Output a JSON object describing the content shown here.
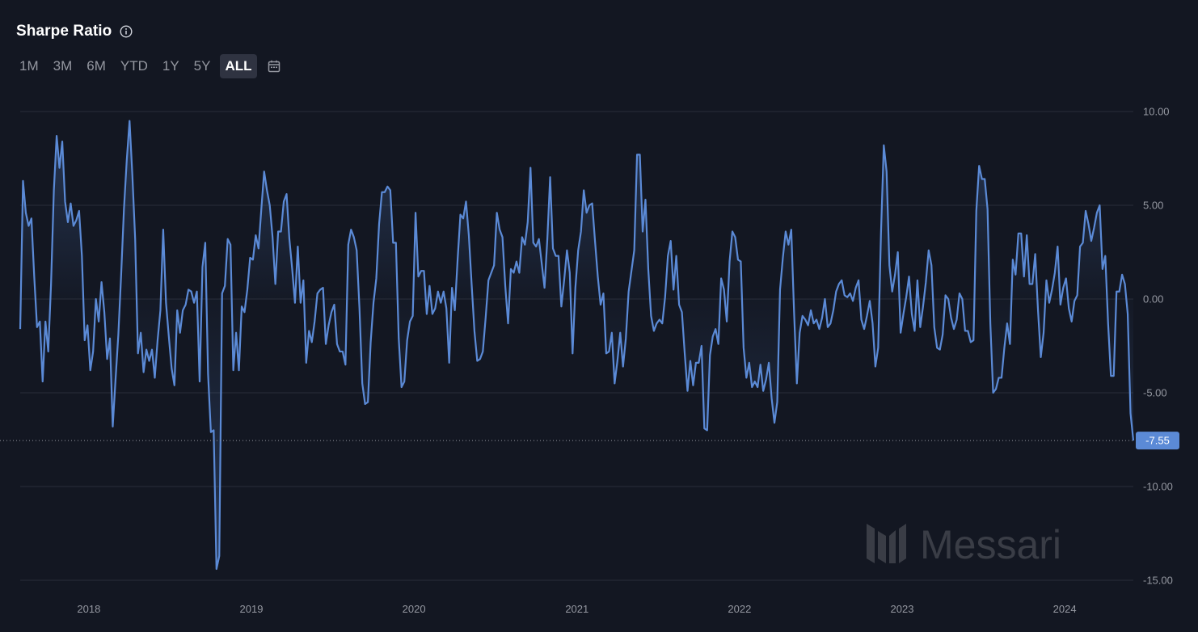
{
  "header": {
    "title": "Sharpe Ratio",
    "info_icon": "info-circle-icon",
    "ranges": [
      "1M",
      "3M",
      "6M",
      "YTD",
      "1Y",
      "5Y",
      "ALL"
    ],
    "active_range": "ALL",
    "calendar_icon": "calendar-icon"
  },
  "watermark": "Messari",
  "colors": {
    "background": "#131722",
    "line": "#5b8ad6",
    "grid": "#2a2e39",
    "badge": "#5b8ad6",
    "text": "#9598a1"
  },
  "chart_data": {
    "type": "area",
    "title": "Sharpe Ratio",
    "xlabel": "",
    "ylabel": "",
    "ylim": [
      -15,
      10
    ],
    "y_ticks": [
      10,
      5,
      0,
      -5,
      -10,
      -15
    ],
    "y_tick_labels": [
      "10.00",
      "5.00",
      "0.00",
      "-5.00",
      "-10.00",
      "-15.00"
    ],
    "x_ticks": [
      "2018",
      "2019",
      "2020",
      "2021",
      "2022",
      "2023",
      "2024"
    ],
    "grid": true,
    "last_value": -7.55,
    "last_value_label": "-7.55",
    "series": [
      {
        "x_start": "2017-07-31",
        "x_end": "2024-06-03",
        "frequency": "weekly",
        "values": [
          -1.6,
          6.3,
          4.6,
          3.9,
          4.3,
          1.2,
          -1.5,
          -1.2,
          -4.4,
          -1.2,
          -2.8,
          0.8,
          5.8,
          8.7,
          7.0,
          8.4,
          5.2,
          4.1,
          5.1,
          3.9,
          4.2,
          4.7,
          2.3,
          -2.2,
          -1.4,
          -3.8,
          -2.8,
          0.0,
          -1.2,
          0.9,
          -0.7,
          -3.2,
          -2.1,
          -6.8,
          -4.3,
          -1.9,
          1.3,
          4.8,
          7.4,
          9.5,
          6.6,
          3.2,
          -2.9,
          -1.8,
          -3.9,
          -2.7,
          -3.3,
          -2.7,
          -4.2,
          -2.2,
          -0.6,
          3.7,
          -0.2,
          -2.0,
          -3.7,
          -4.6,
          -0.6,
          -1.8,
          -0.6,
          -0.3,
          0.5,
          0.4,
          -0.2,
          0.4,
          -4.4,
          1.7,
          3.0,
          -4.0,
          -7.1,
          -7.0,
          -14.4,
          -13.7,
          0.3,
          0.7,
          3.2,
          2.9,
          -3.8,
          -1.8,
          -3.8,
          -0.4,
          -0.7,
          0.5,
          2.2,
          2.1,
          3.4,
          2.7,
          4.8,
          6.8,
          5.8,
          5.0,
          3.3,
          0.8,
          3.6,
          3.6,
          5.2,
          5.6,
          3.2,
          1.6,
          -0.2,
          2.8,
          -0.2,
          1.0,
          -3.4,
          -1.7,
          -2.3,
          -1.2,
          0.3,
          0.5,
          0.6,
          -2.4,
          -1.4,
          -0.7,
          -0.3,
          -2.4,
          -2.8,
          -2.8,
          -3.5,
          2.9,
          3.7,
          3.3,
          2.6,
          -0.5,
          -4.5,
          -5.6,
          -5.5,
          -2.3,
          -0.2,
          1.1,
          4.0,
          5.7,
          5.7,
          6.0,
          5.8,
          3.0,
          3.0,
          -2.1,
          -4.7,
          -4.4,
          -2.2,
          -1.2,
          -0.9,
          4.6,
          1.2,
          1.5,
          1.5,
          -0.8,
          0.7,
          -0.8,
          -0.5,
          0.4,
          -0.2,
          0.4,
          -0.5,
          -3.4,
          0.6,
          -0.6,
          2.1,
          4.5,
          4.3,
          5.2,
          3.4,
          0.8,
          -1.7,
          -3.3,
          -3.2,
          -2.8,
          -1.0,
          1.0,
          1.4,
          1.8,
          4.6,
          3.7,
          3.3,
          0.7,
          -1.3,
          1.6,
          1.4,
          2.0,
          1.4,
          3.3,
          2.9,
          4.1,
          7.0,
          3.0,
          2.8,
          3.2,
          1.9,
          0.6,
          3.2,
          6.5,
          2.7,
          2.3,
          2.3,
          -0.4,
          1.0,
          2.6,
          1.4,
          -2.9,
          0.6,
          2.6,
          3.6,
          5.8,
          4.6,
          5.0,
          5.1,
          3.1,
          1.2,
          -0.3,
          0.3,
          -2.9,
          -2.8,
          -1.8,
          -4.5,
          -3.3,
          -1.8,
          -3.6,
          -2.1,
          0.4,
          1.5,
          2.6,
          7.7,
          7.7,
          3.6,
          5.3,
          1.6,
          -0.9,
          -1.7,
          -1.3,
          -1.1,
          -1.3,
          0.1,
          2.3,
          3.1,
          0.5,
          2.3,
          -0.3,
          -0.7,
          -2.9,
          -4.9,
          -3.3,
          -4.6,
          -3.4,
          -3.4,
          -2.5,
          -6.9,
          -7.0,
          -3.0,
          -2.0,
          -1.6,
          -2.4,
          1.1,
          0.5,
          -1.2,
          2.0,
          3.6,
          3.3,
          2.1,
          2.0,
          -2.6,
          -4.2,
          -3.4,
          -4.7,
          -4.4,
          -4.7,
          -3.5,
          -4.9,
          -4.3,
          -3.4,
          -5.3,
          -6.6,
          -5.5,
          0.5,
          2.2,
          3.6,
          2.9,
          3.7,
          -0.7,
          -4.5,
          -1.8,
          -0.9,
          -1.1,
          -1.4,
          -0.6,
          -1.3,
          -1.1,
          -1.6,
          -1.0,
          0.0,
          -1.5,
          -1.3,
          -0.6,
          0.4,
          0.8,
          1.0,
          0.2,
          0.1,
          0.3,
          -0.1,
          0.6,
          1.0,
          -1.1,
          -1.6,
          -0.9,
          -0.1,
          -1.3,
          -3.6,
          -2.6,
          3.5,
          8.2,
          6.8,
          1.8,
          0.4,
          1.3,
          2.5,
          -1.8,
          -0.8,
          0.1,
          1.2,
          -0.8,
          -1.7,
          1.0,
          -1.5,
          -0.4,
          0.9,
          2.6,
          1.8,
          -1.5,
          -2.6,
          -2.7,
          -1.9,
          0.2,
          0.0,
          -1.0,
          -1.6,
          -1.1,
          0.3,
          0.0,
          -1.7,
          -1.7,
          -2.3,
          -2.2,
          4.7,
          7.1,
          6.4,
          6.4,
          4.8,
          -1.3,
          -5.0,
          -4.8,
          -4.2,
          -4.2,
          -2.6,
          -1.3,
          -2.4,
          2.1,
          1.3,
          3.5,
          3.5,
          1.2,
          3.4,
          0.8,
          0.8,
          2.4,
          -0.6,
          -3.1,
          -1.8,
          1.0,
          -0.2,
          0.5,
          1.4,
          2.8,
          -0.3,
          0.6,
          1.1,
          -0.5,
          -1.2,
          -0.1,
          0.2,
          2.8,
          3.0,
          4.7,
          4.0,
          3.1,
          3.8,
          4.6,
          5.0,
          1.6,
          2.3,
          -1.3,
          -4.1,
          -4.1,
          0.4,
          0.4,
          1.3,
          0.8,
          -0.8,
          -6.1,
          -7.55
        ]
      }
    ]
  }
}
